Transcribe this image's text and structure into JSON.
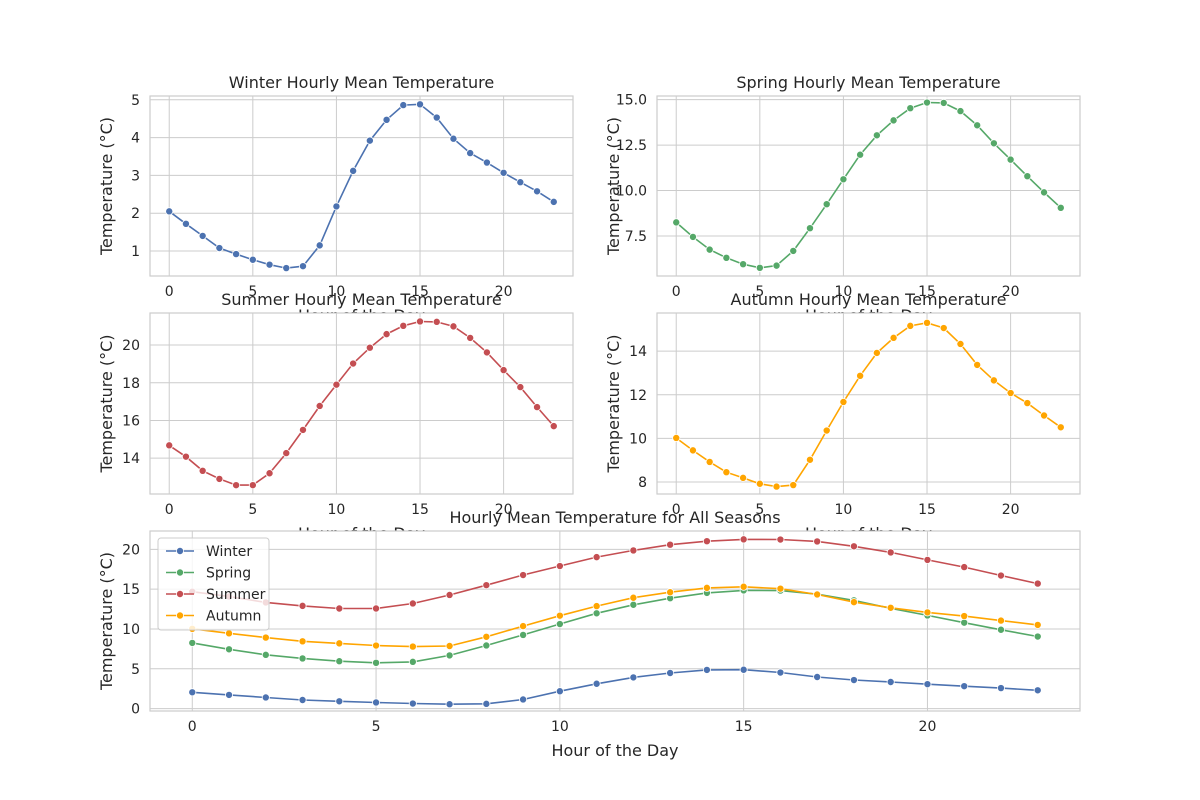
{
  "colors": {
    "winter": "#4c72b0",
    "spring": "#55a868",
    "summer": "#c44e52",
    "autumn": "#ffa500"
  },
  "chart_data": [
    {
      "id": "winter",
      "type": "line",
      "title": "Winter Hourly Mean Temperature",
      "xlabel": "Hour of the Day",
      "ylabel": "Temperature (°C)",
      "xlim": [
        -1.15,
        24.15
      ],
      "ylim": [
        0.34,
        5.1
      ],
      "xticks": [
        0,
        5,
        10,
        15,
        20
      ],
      "yticks": [
        1,
        2,
        3,
        4,
        5
      ],
      "ytick_labels": [
        "1",
        "2",
        "3",
        "4",
        "5"
      ],
      "grid": true,
      "series": [
        {
          "color": "#4c72b0",
          "x": [
            0,
            1,
            2,
            3,
            4,
            5,
            6,
            7,
            8,
            9,
            10,
            11,
            12,
            13,
            14,
            15,
            16,
            17,
            18,
            19,
            20,
            21,
            22,
            23
          ],
          "values": [
            2.05,
            1.72,
            1.4,
            1.08,
            0.92,
            0.77,
            0.64,
            0.55,
            0.6,
            1.15,
            2.18,
            3.12,
            3.92,
            4.47,
            4.86,
            4.88,
            4.53,
            3.97,
            3.59,
            3.34,
            3.07,
            2.82,
            2.58,
            2.3
          ]
        }
      ]
    },
    {
      "id": "spring",
      "type": "line",
      "title": "Spring Hourly Mean Temperature",
      "xlabel": "Hour of the Day",
      "ylabel": "Temperature (°C)",
      "xlim": [
        -1.15,
        24.15
      ],
      "ylim": [
        5.3,
        15.2
      ],
      "xticks": [
        0,
        5,
        10,
        15,
        20
      ],
      "yticks": [
        7.5,
        10,
        12.5,
        15
      ],
      "ytick_labels": [
        "7.5",
        "10.0",
        "12.5",
        "15.0"
      ],
      "grid": true,
      "series": [
        {
          "color": "#55a868",
          "x": [
            0,
            1,
            2,
            3,
            4,
            5,
            6,
            7,
            8,
            9,
            10,
            11,
            12,
            13,
            14,
            15,
            16,
            17,
            18,
            19,
            20,
            21,
            22,
            23
          ],
          "values": [
            8.25,
            7.45,
            6.75,
            6.3,
            5.95,
            5.75,
            5.87,
            6.68,
            7.93,
            9.25,
            10.62,
            11.97,
            13.04,
            13.86,
            14.53,
            14.84,
            14.82,
            14.37,
            13.59,
            12.6,
            11.7,
            10.79,
            9.9,
            9.05
          ]
        }
      ]
    },
    {
      "id": "summer",
      "type": "line",
      "title": "Summer Hourly Mean Temperature",
      "xlabel": "Hour of the Day",
      "ylabel": "Temperature (°C)",
      "xlim": [
        -1.15,
        24.15
      ],
      "ylim": [
        12.1,
        21.7
      ],
      "xticks": [
        0,
        5,
        10,
        15,
        20
      ],
      "yticks": [
        14,
        16,
        18,
        20
      ],
      "ytick_labels": [
        "14",
        "16",
        "18",
        "20"
      ],
      "grid": true,
      "series": [
        {
          "color": "#c44e52",
          "x": [
            0,
            1,
            2,
            3,
            4,
            5,
            6,
            7,
            8,
            9,
            10,
            11,
            12,
            13,
            14,
            15,
            16,
            17,
            18,
            19,
            20,
            21,
            22,
            23
          ],
          "values": [
            14.68,
            14.08,
            13.33,
            12.9,
            12.57,
            12.57,
            13.2,
            14.27,
            15.5,
            16.77,
            17.9,
            19.02,
            19.86,
            20.58,
            21.02,
            21.25,
            21.23,
            20.99,
            20.38,
            19.61,
            18.67,
            17.77,
            16.71,
            15.7
          ]
        }
      ]
    },
    {
      "id": "autumn",
      "type": "line",
      "title": "Autumn Hourly Mean Temperature",
      "xlabel": "Hour of the Day",
      "ylabel": "Temperature (°C)",
      "xlim": [
        -1.15,
        24.15
      ],
      "ylim": [
        7.45,
        15.75
      ],
      "xticks": [
        0,
        5,
        10,
        15,
        20
      ],
      "yticks": [
        8,
        10,
        12,
        14
      ],
      "ytick_labels": [
        "8",
        "10",
        "12",
        "14"
      ],
      "grid": true,
      "series": [
        {
          "color": "#ffa500",
          "x": [
            0,
            1,
            2,
            3,
            4,
            5,
            6,
            7,
            8,
            9,
            10,
            11,
            12,
            13,
            14,
            15,
            16,
            17,
            18,
            19,
            20,
            21,
            22,
            23
          ],
          "values": [
            10.02,
            9.45,
            8.92,
            8.45,
            8.19,
            7.92,
            7.79,
            7.86,
            9.02,
            10.36,
            11.67,
            12.87,
            13.92,
            14.61,
            15.16,
            15.3,
            15.06,
            14.33,
            13.37,
            12.66,
            12.08,
            11.62,
            11.05,
            10.51
          ]
        }
      ]
    },
    {
      "id": "all",
      "type": "line",
      "title": "Hourly Mean Temperature for All Seasons",
      "xlabel": "Hour of the Day",
      "ylabel": "Temperature (°C)",
      "xlim": [
        -1.15,
        24.15
      ],
      "ylim": [
        -0.3,
        22.3
      ],
      "xticks": [
        0,
        5,
        10,
        15,
        20
      ],
      "yticks": [
        0,
        5,
        10,
        15,
        20
      ],
      "ytick_labels": [
        "0",
        "5",
        "10",
        "15",
        "20"
      ],
      "grid": true,
      "legend": "top-left",
      "series": [
        {
          "name": "Winter",
          "color": "#4c72b0",
          "x": [
            0,
            1,
            2,
            3,
            4,
            5,
            6,
            7,
            8,
            9,
            10,
            11,
            12,
            13,
            14,
            15,
            16,
            17,
            18,
            19,
            20,
            21,
            22,
            23
          ],
          "values": [
            2.05,
            1.72,
            1.4,
            1.08,
            0.92,
            0.77,
            0.64,
            0.55,
            0.6,
            1.15,
            2.18,
            3.12,
            3.92,
            4.47,
            4.86,
            4.88,
            4.53,
            3.97,
            3.59,
            3.34,
            3.07,
            2.82,
            2.58,
            2.3
          ]
        },
        {
          "name": "Spring",
          "color": "#55a868",
          "x": [
            0,
            1,
            2,
            3,
            4,
            5,
            6,
            7,
            8,
            9,
            10,
            11,
            12,
            13,
            14,
            15,
            16,
            17,
            18,
            19,
            20,
            21,
            22,
            23
          ],
          "values": [
            8.25,
            7.45,
            6.75,
            6.3,
            5.95,
            5.75,
            5.87,
            6.68,
            7.93,
            9.25,
            10.62,
            11.97,
            13.04,
            13.86,
            14.53,
            14.84,
            14.82,
            14.37,
            13.59,
            12.6,
            11.7,
            10.79,
            9.9,
            9.05
          ]
        },
        {
          "name": "Summer",
          "color": "#c44e52",
          "x": [
            0,
            1,
            2,
            3,
            4,
            5,
            6,
            7,
            8,
            9,
            10,
            11,
            12,
            13,
            14,
            15,
            16,
            17,
            18,
            19,
            20,
            21,
            22,
            23
          ],
          "values": [
            14.68,
            14.08,
            13.33,
            12.9,
            12.57,
            12.57,
            13.2,
            14.27,
            15.5,
            16.77,
            17.9,
            19.02,
            19.86,
            20.58,
            21.02,
            21.25,
            21.23,
            20.99,
            20.38,
            19.61,
            18.67,
            17.77,
            16.71,
            15.7
          ]
        },
        {
          "name": "Autumn",
          "color": "#ffa500",
          "x": [
            0,
            1,
            2,
            3,
            4,
            5,
            6,
            7,
            8,
            9,
            10,
            11,
            12,
            13,
            14,
            15,
            16,
            17,
            18,
            19,
            20,
            21,
            22,
            23
          ],
          "values": [
            10.02,
            9.45,
            8.92,
            8.45,
            8.19,
            7.92,
            7.79,
            7.86,
            9.02,
            10.36,
            11.67,
            12.87,
            13.92,
            14.61,
            15.16,
            15.3,
            15.06,
            14.33,
            13.37,
            12.66,
            12.08,
            11.62,
            11.05,
            10.51
          ]
        }
      ]
    }
  ]
}
